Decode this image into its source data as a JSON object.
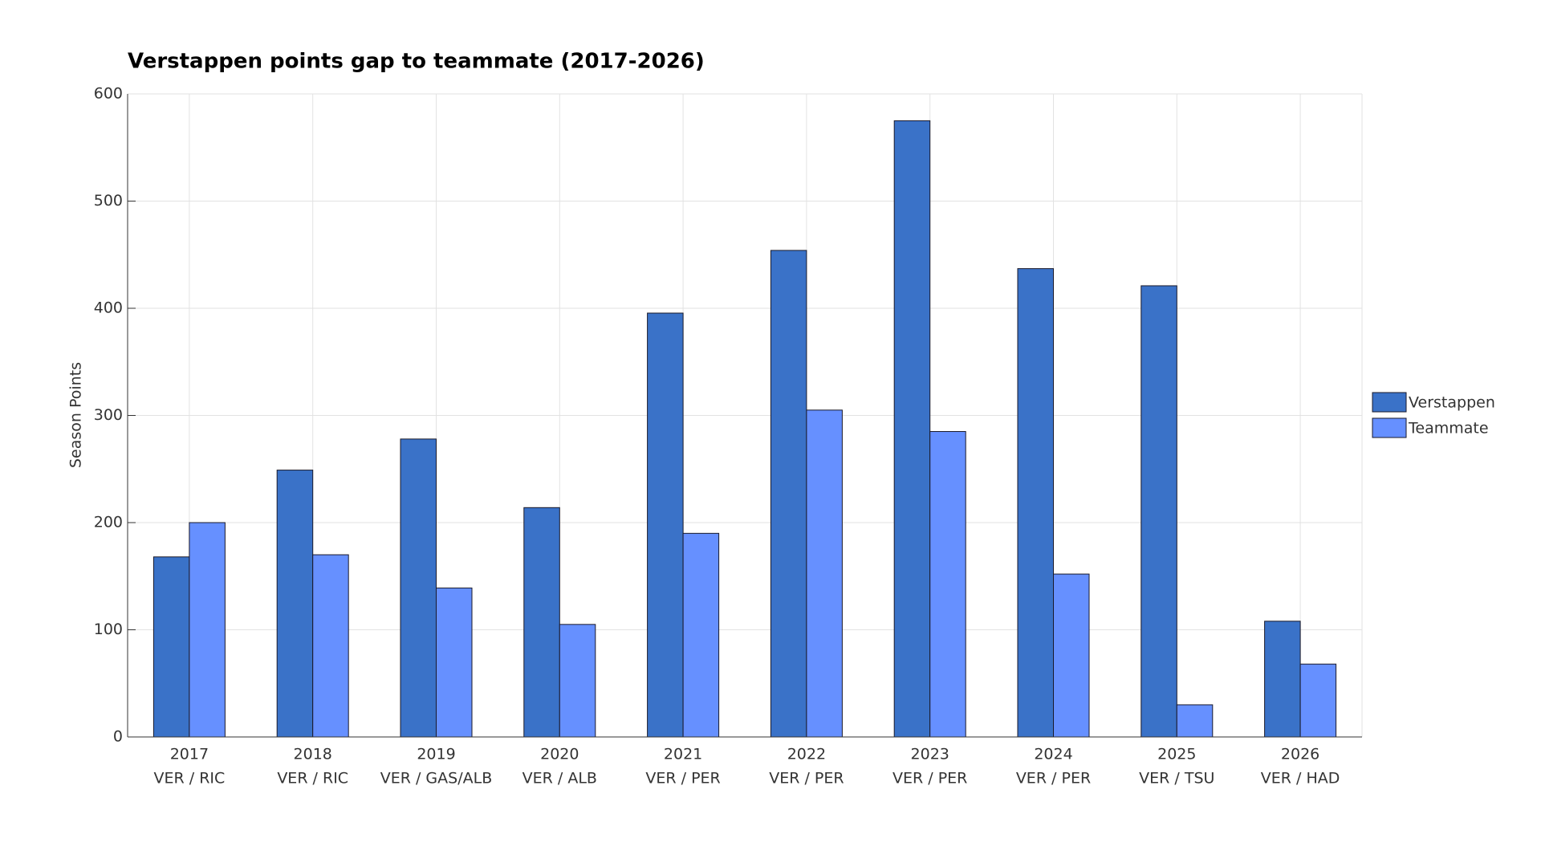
{
  "chart_data": {
    "type": "bar",
    "title": "Verstappen points gap to teammate (2017-2026)",
    "y_label": "Season Points",
    "categories": [
      "2017",
      "2018",
      "2019",
      "2020",
      "2021",
      "2022",
      "2023",
      "2024",
      "2025",
      "2026"
    ],
    "pairings": [
      "VER / RIC",
      "VER / RIC",
      "VER / GAS/ALB",
      "VER / ALB",
      "VER / PER",
      "VER / PER",
      "VER / PER",
      "VER / PER",
      "VER / TSU",
      "VER / HAD"
    ],
    "series": [
      {
        "name": "Verstappen",
        "color": "#3a72c8",
        "values": [
          168,
          249,
          278,
          214,
          395.5,
          454,
          575,
          437,
          421,
          108
        ]
      },
      {
        "name": "Teammate",
        "color": "#6690ff",
        "values": [
          200,
          170,
          139,
          105,
          190,
          305,
          285,
          152,
          30,
          68
        ]
      }
    ],
    "ylim": [
      0,
      600
    ],
    "yticks": [
      0,
      100,
      200,
      300,
      400,
      500,
      600
    ],
    "grid": true,
    "legend": "right"
  }
}
